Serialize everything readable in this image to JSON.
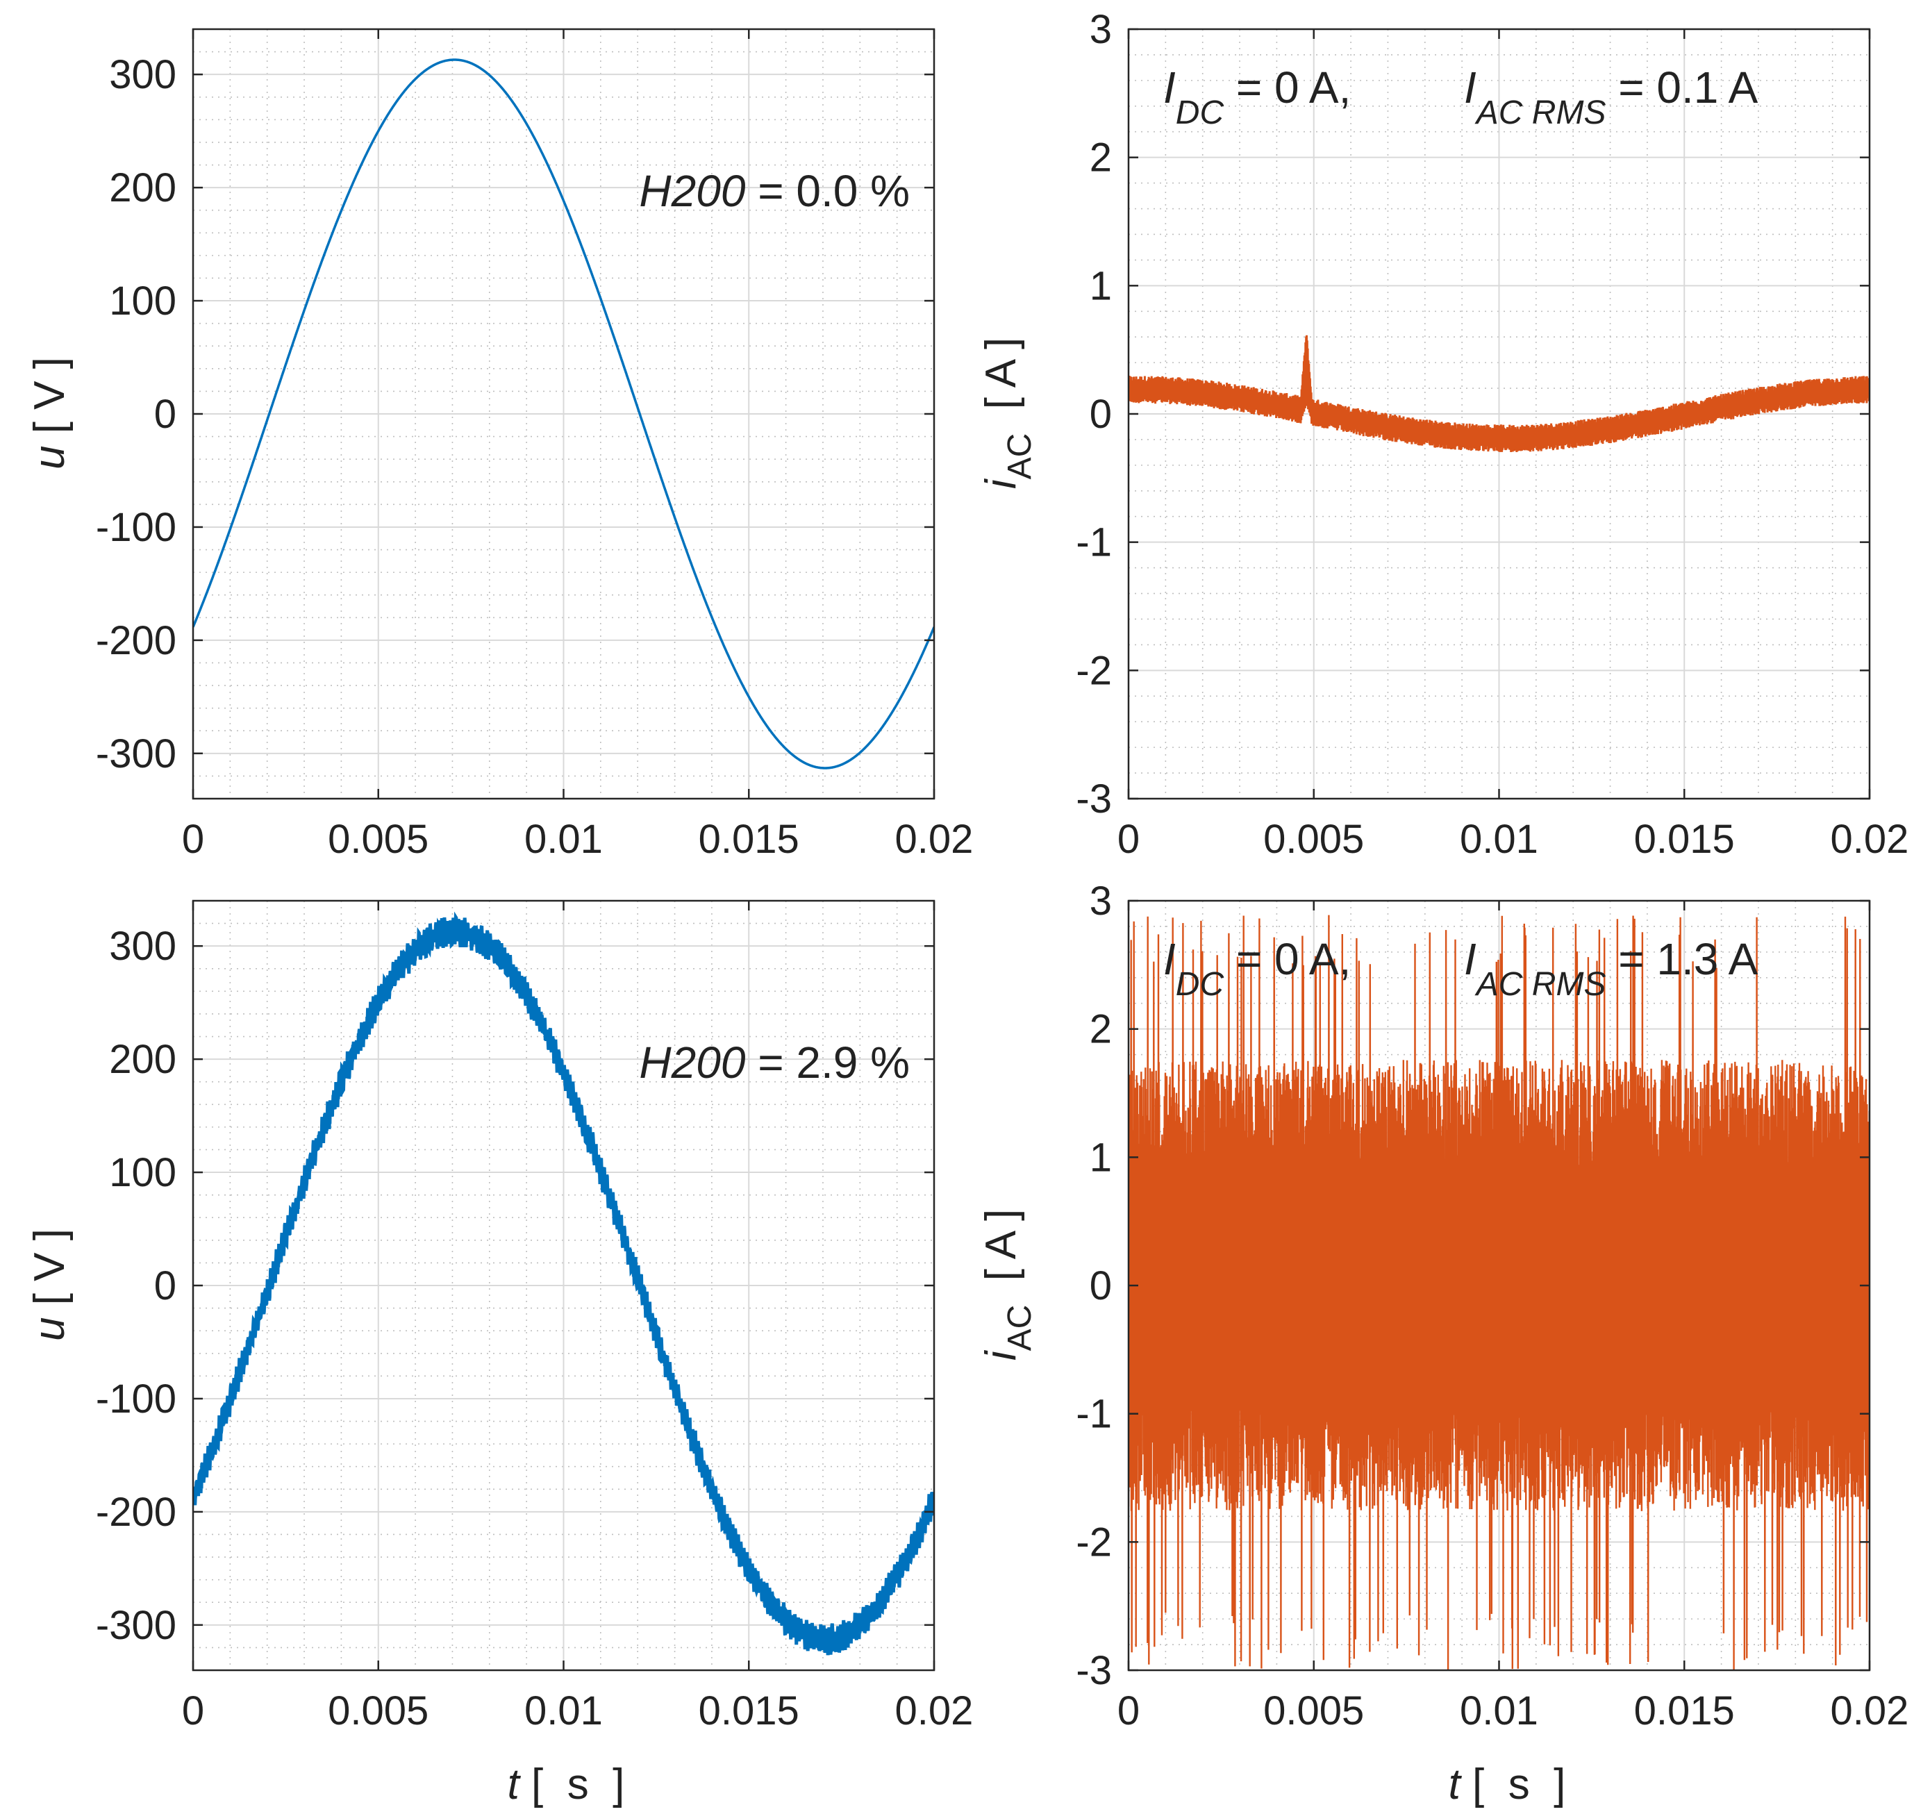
{
  "chart_data": [
    {
      "type": "line",
      "name": "voltage-top",
      "x_range": [
        0,
        0.02
      ],
      "ylim": [
        -340,
        340
      ],
      "x_ticks": [
        0,
        0.005,
        0.01,
        0.015,
        0.02
      ],
      "x_tick_labels": [
        "0",
        "0.005",
        "0.01",
        "0.015",
        "0.02"
      ],
      "y_ticks": [
        300,
        200,
        100,
        0,
        -100,
        -200,
        -300
      ],
      "y_tick_labels": [
        "300",
        "200",
        "100",
        "0",
        "-100",
        "-200",
        "-300"
      ],
      "ylabel_var": "u",
      "ylabel_unit": "[  V  ]",
      "xlabel_var": "",
      "xlabel_unit": "",
      "series": [
        {
          "name": "u",
          "color": "#0072BD",
          "kind": "sine",
          "amplitude": 313,
          "frequency_hz": 50,
          "phase_deg": -37,
          "ripple_amplitude": 0
        }
      ],
      "annotation": {
        "var": "H200",
        "text": " = 0.0 %"
      },
      "grid": true
    },
    {
      "type": "line",
      "name": "current-top",
      "x_range": [
        0,
        0.02
      ],
      "ylim": [
        -3,
        3
      ],
      "x_ticks": [
        0,
        0.005,
        0.01,
        0.015,
        0.02
      ],
      "x_tick_labels": [
        "0",
        "0.005",
        "0.01",
        "0.015",
        "0.02"
      ],
      "y_ticks": [
        3,
        2,
        1,
        0,
        -1,
        -2,
        -3
      ],
      "y_tick_labels": [
        "3",
        "2",
        "1",
        "0",
        "-1",
        "-2",
        "-3"
      ],
      "ylabel_var": "i",
      "ylabel_sub": "AC",
      "ylabel_unit": "[  A  ]",
      "xlabel_var": "",
      "xlabel_unit": "",
      "series": [
        {
          "name": "i_AC",
          "color": "#D95319",
          "kind": "current-low",
          "offset": 0.2,
          "amplitude": 0.25,
          "noise_band": 0.09,
          "spike_time": 0.0048,
          "spike_value": 0.55
        }
      ],
      "annotation": {
        "i1": "I",
        "s1": "DC",
        "t1": " = 0 A,",
        "i2": "I",
        "s2": "AC RMS",
        "t2": " = 0.1 A"
      },
      "grid": true
    },
    {
      "type": "line",
      "name": "voltage-bottom",
      "x_range": [
        0,
        0.02
      ],
      "ylim": [
        -340,
        340
      ],
      "x_ticks": [
        0,
        0.005,
        0.01,
        0.015,
        0.02
      ],
      "x_tick_labels": [
        "0",
        "0.005",
        "0.01",
        "0.015",
        "0.02"
      ],
      "y_ticks": [
        300,
        200,
        100,
        0,
        -100,
        -200,
        -300
      ],
      "y_tick_labels": [
        "300",
        "200",
        "100",
        "0",
        "-100",
        "-200",
        "-300"
      ],
      "ylabel_var": "u",
      "ylabel_unit": "[  V  ]",
      "xlabel_var": "t",
      "xlabel_unit": "[  s  ]",
      "series": [
        {
          "name": "u",
          "color": "#0072BD",
          "kind": "sine",
          "amplitude": 313,
          "frequency_hz": 50,
          "phase_deg": -37,
          "ripple_amplitude": 9
        }
      ],
      "annotation": {
        "var": "H200",
        "text": " = 2.9 %"
      },
      "grid": true
    },
    {
      "type": "line",
      "name": "current-bottom",
      "x_range": [
        0,
        0.02
      ],
      "ylim": [
        -3,
        3
      ],
      "x_ticks": [
        0,
        0.005,
        0.01,
        0.015,
        0.02
      ],
      "x_tick_labels": [
        "0",
        "0.005",
        "0.01",
        "0.015",
        "0.02"
      ],
      "y_ticks": [
        3,
        2,
        1,
        0,
        -1,
        -2,
        -3
      ],
      "y_tick_labels": [
        "3",
        "2",
        "1",
        "0",
        "-1",
        "-2",
        "-3"
      ],
      "ylabel_var": "i",
      "ylabel_sub": "AC",
      "ylabel_unit": "[  A  ]",
      "xlabel_var": "t",
      "xlabel_unit": "[  s  ]",
      "series": [
        {
          "name": "i_AC",
          "color": "#D95319",
          "kind": "current-high",
          "offset": 0.0,
          "envelope": 1.6,
          "peak_max": 2.9,
          "peak_min": -3.0
        }
      ],
      "annotation": {
        "i1": "I",
        "s1": "DC",
        "t1": " = 0 A,",
        "i2": "I",
        "s2": "AC RMS",
        "t2": " = 1.3 A"
      },
      "grid": true
    }
  ]
}
